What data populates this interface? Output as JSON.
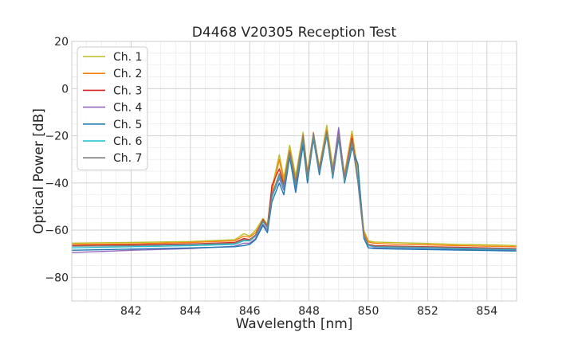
{
  "chart_data": {
    "type": "line",
    "title": "D4468 V20305 Reception Test",
    "xlabel": "Wavelength [nm]",
    "ylabel": "Optical Power [dB]",
    "xlim": [
      840,
      855
    ],
    "ylim": [
      -90,
      20
    ],
    "xticks": [
      842,
      844,
      846,
      848,
      850,
      852,
      854
    ],
    "yticks": [
      -80,
      -60,
      -40,
      -20,
      0,
      20
    ],
    "x_minor_step": 0.5,
    "y_minor_step": 5,
    "grid": true,
    "legend_position": "top-left",
    "x": [
      840.0,
      842.0,
      844.0,
      845.5,
      845.8,
      846.0,
      846.2,
      846.45,
      846.6,
      846.75,
      847.0,
      847.15,
      847.35,
      847.55,
      847.8,
      847.95,
      848.15,
      848.35,
      848.6,
      848.8,
      849.0,
      849.2,
      849.45,
      849.65,
      849.85,
      850.0,
      850.2,
      851.0,
      852.0,
      853.0,
      854.0,
      855.0
    ],
    "series": [
      {
        "name": "Ch. 1",
        "color": "#bcbd22",
        "values": [
          -65.5,
          -65.2,
          -64.8,
          -64.0,
          -61.5,
          -62.5,
          -60.0,
          -55.0,
          -57.5,
          -42.0,
          -28.0,
          -38.0,
          -24.0,
          -37.0,
          -18.5,
          -35.0,
          -19.0,
          -33.0,
          -15.5,
          -33.0,
          -19.0,
          -36.0,
          -18.0,
          -35.0,
          -60.0,
          -64.5,
          -65.0,
          -65.3,
          -65.6,
          -66.0,
          -66.2,
          -66.5
        ]
      },
      {
        "name": "Ch. 2",
        "color": "#ff7f0e",
        "values": [
          -66.0,
          -65.8,
          -65.2,
          -64.5,
          -62.5,
          -63.0,
          -61.0,
          -56.0,
          -58.0,
          -44.0,
          -30.0,
          -40.0,
          -26.0,
          -39.0,
          -19.5,
          -36.0,
          -18.5,
          -34.0,
          -17.5,
          -35.0,
          -18.0,
          -37.0,
          -19.5,
          -38.0,
          -61.0,
          -65.0,
          -65.5,
          -66.0,
          -66.2,
          -66.5,
          -66.8,
          -67.0
        ]
      },
      {
        "name": "Ch. 3",
        "color": "#d62728",
        "values": [
          -66.5,
          -66.2,
          -65.8,
          -65.2,
          -63.5,
          -64.0,
          -62.0,
          -55.5,
          -58.5,
          -41.0,
          -34.0,
          -41.0,
          -27.0,
          -40.0,
          -20.5,
          -37.0,
          -20.0,
          -34.5,
          -18.5,
          -36.0,
          -19.0,
          -38.0,
          -21.0,
          -39.0,
          -62.0,
          -66.0,
          -66.5,
          -66.8,
          -67.0,
          -67.2,
          -67.5,
          -67.8
        ]
      },
      {
        "name": "Ch. 4",
        "color": "#9467bd",
        "values": [
          -69.5,
          -68.5,
          -67.8,
          -66.8,
          -65.5,
          -65.5,
          -63.5,
          -57.5,
          -60.0,
          -46.0,
          -38.0,
          -43.0,
          -28.0,
          -42.0,
          -22.5,
          -39.0,
          -21.5,
          -36.0,
          -20.0,
          -35.0,
          -16.5,
          -38.0,
          -22.0,
          -40.0,
          -63.5,
          -67.5,
          -67.5,
          -67.8,
          -68.0,
          -68.2,
          -68.3,
          -68.5
        ]
      },
      {
        "name": "Ch. 5",
        "color": "#1f77b4",
        "values": [
          -68.5,
          -68.0,
          -67.5,
          -67.0,
          -66.5,
          -66.0,
          -64.0,
          -58.0,
          -61.0,
          -48.0,
          -40.0,
          -45.0,
          -29.0,
          -44.0,
          -24.0,
          -40.0,
          -21.0,
          -36.5,
          -19.5,
          -38.0,
          -21.0,
          -40.0,
          -25.0,
          -32.0,
          -63.0,
          -67.5,
          -67.8,
          -68.0,
          -68.2,
          -68.4,
          -68.6,
          -68.8
        ]
      },
      {
        "name": "Ch. 6",
        "color": "#17becf",
        "values": [
          -67.5,
          -67.0,
          -66.5,
          -66.0,
          -64.5,
          -64.5,
          -62.5,
          -56.5,
          -59.0,
          -46.0,
          -37.0,
          -42.0,
          -27.5,
          -41.0,
          -21.0,
          -38.0,
          -20.5,
          -35.0,
          -19.0,
          -37.0,
          -20.0,
          -39.0,
          -23.0,
          -38.0,
          -62.5,
          -66.5,
          -67.0,
          -67.3,
          -67.5,
          -67.8,
          -68.0,
          -68.2
        ]
      },
      {
        "name": "Ch. 7",
        "color": "#7f7f7f",
        "values": [
          -66.8,
          -66.5,
          -66.0,
          -65.5,
          -64.0,
          -64.2,
          -62.2,
          -56.0,
          -58.8,
          -45.0,
          -36.0,
          -41.5,
          -27.0,
          -40.5,
          -20.0,
          -37.5,
          -19.0,
          -34.8,
          -18.2,
          -36.5,
          -19.5,
          -38.5,
          -22.0,
          -39.5,
          -62.0,
          -66.2,
          -66.8,
          -67.0,
          -67.2,
          -67.5,
          -67.7,
          -68.0
        ]
      }
    ]
  }
}
